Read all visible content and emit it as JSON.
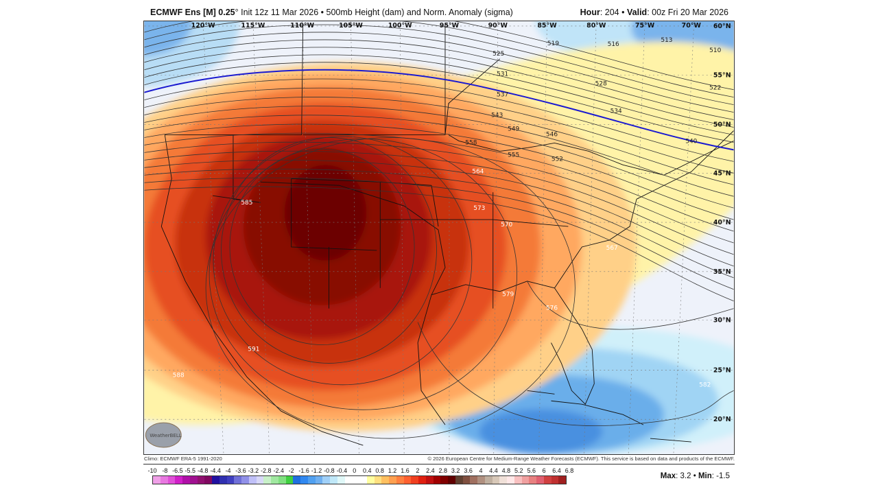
{
  "header": {
    "model": "ECMWF Ens [M] 0.25",
    "degree": "°",
    "init": "Init 12z 11 Mar 2026",
    "sep": "•",
    "field": "500mb Height (dam) and Norm. Anomaly (sigma)",
    "hour_label": "Hour",
    "hour": "204",
    "valid_label": "Valid",
    "valid": "00z Fri 20 Mar 2026"
  },
  "map": {
    "lon_labels": [
      "120°W",
      "115°W",
      "110°W",
      "105°W",
      "100°W",
      "95°W",
      "90°W",
      "85°W",
      "80°W",
      "75°W",
      "70°W"
    ],
    "lat_labels": [
      "60°N",
      "55°N",
      "50°N",
      "45°N",
      "40°N",
      "35°N",
      "30°N",
      "25°N",
      "20°N"
    ],
    "contour_labels": [
      "510",
      "513",
      "516",
      "519",
      "522",
      "525",
      "528",
      "531",
      "534",
      "537",
      "540",
      "543",
      "546",
      "549",
      "552",
      "555",
      "558",
      "564",
      "567",
      "570",
      "573",
      "576",
      "579",
      "582",
      "585",
      "588",
      "591"
    ],
    "highlight_contour_color": "#1a1ad0",
    "logo_text": "WeatherBELL"
  },
  "footer": {
    "climo": "Climo: ECMWF ERA-5 1991-2020",
    "copyright": "© 2026 European Centre for Medium-Range Weather Forecasts (ECMWF). This service is based on data and products of the ECMWF."
  },
  "colorbar": {
    "ticks": [
      "-10",
      "-8",
      "-6.5",
      "-5.5",
      "-4.8",
      "-4.4",
      "-4",
      "-3.6",
      "-3.2",
      "-2.8",
      "-2.4",
      "-2",
      "-1.6",
      "-1.2",
      "-0.8",
      "-0.4",
      "0",
      "0.4",
      "0.8",
      "1.2",
      "1.6",
      "2",
      "2.4",
      "2.8",
      "3.2",
      "3.6",
      "4",
      "4.4",
      "4.8",
      "5.2",
      "5.6",
      "6",
      "6.4",
      "6.8"
    ],
    "colors": [
      "#f0a0e8",
      "#e878e0",
      "#e050d8",
      "#d020c8",
      "#b010a8",
      "#a01090",
      "#901070",
      "#800860",
      "#2010a0",
      "#3030b0",
      "#4040c0",
      "#7070d8",
      "#9090e8",
      "#c0c0f8",
      "#d8d8f8",
      "#c8f0c8",
      "#a0e8a0",
      "#80e080",
      "#40d040",
      "#2070e0",
      "#3088f0",
      "#50a0f0",
      "#70b0f0",
      "#a0d0f8",
      "#c0e8f8",
      "#e0f8f8",
      "#ffffff",
      "#ffffff",
      "#ffffff",
      "#ffffa0",
      "#ffe080",
      "#ffc060",
      "#ffa050",
      "#ff8040",
      "#ff6030",
      "#f04020",
      "#e02010",
      "#c01010",
      "#a00000",
      "#800000",
      "#600000",
      "#604030",
      "#805040",
      "#a07060",
      "#b09080",
      "#c0b0a0",
      "#d8c8b8",
      "#f0e0d8",
      "#ffe8e8",
      "#f8c0c0",
      "#f0a0a0",
      "#e88080",
      "#e06070",
      "#d04040",
      "#c03030",
      "#a02020"
    ]
  },
  "stats": {
    "max_label": "Max",
    "max": "3.2",
    "min_label": "Min",
    "min": "-1.5",
    "sep": "•"
  }
}
